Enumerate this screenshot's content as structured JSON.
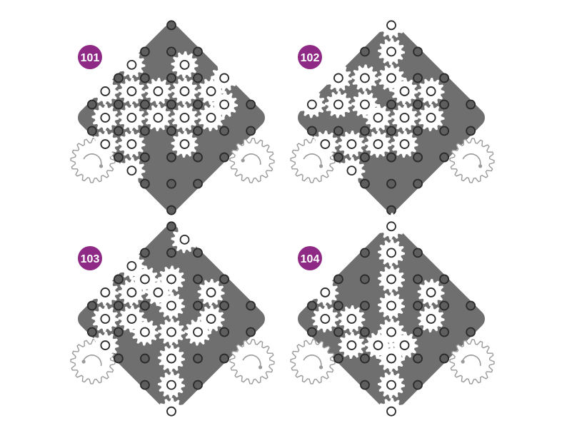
{
  "colors": {
    "board": "#6f6f6f",
    "peg_fill": "#5e5e5e",
    "peg_stroke": "#2a2a2a",
    "gear_fill": "#ffffff",
    "badge": "#8e2a86",
    "badge_text": "#ffffff",
    "drive_stroke": "#9a9a9a"
  },
  "puzzles": [
    {
      "number": "101",
      "left_drive_arrow": "clockwise",
      "right_drive_arrow": "counterclockwise",
      "gears": [
        [
          2,
          1
        ],
        [
          4,
          0
        ],
        [
          5,
          1
        ],
        [
          0,
          3
        ],
        [
          1,
          4
        ],
        [
          2,
          3
        ],
        [
          3,
          2
        ],
        [
          4,
          1
        ],
        [
          0,
          5
        ],
        [
          1,
          6
        ],
        [
          2,
          5
        ],
        [
          3,
          4
        ],
        [
          4,
          3
        ],
        [
          5,
          2
        ],
        [
          2,
          7
        ],
        [
          3,
          6
        ],
        [
          5,
          4
        ],
        [
          4,
          7
        ]
      ]
    },
    {
      "number": "102",
      "left_drive_arrow": "clockwise",
      "right_drive_arrow": "clockwise",
      "gears": [
        [
          0,
          0
        ],
        [
          1,
          1
        ],
        [
          2,
          2
        ],
        [
          1,
          3
        ],
        [
          0,
          4
        ],
        [
          3,
          2
        ],
        [
          4,
          1
        ],
        [
          4,
          3
        ],
        [
          5,
          2
        ],
        [
          0,
          6
        ],
        [
          1,
          5
        ],
        [
          2,
          4
        ],
        [
          3,
          4
        ],
        [
          4,
          5
        ],
        [
          5,
          4
        ],
        [
          3,
          6
        ],
        [
          2,
          7
        ],
        [
          4,
          7
        ]
      ]
    },
    {
      "number": "103",
      "left_drive_arrow": "counterclockwise",
      "right_drive_arrow": "clockwise",
      "gears": [
        [
          1,
          0
        ],
        [
          1,
          3
        ],
        [
          2,
          2
        ],
        [
          0,
          3
        ],
        [
          1,
          4
        ],
        [
          2,
          3
        ],
        [
          3,
          3
        ],
        [
          5,
          2
        ],
        [
          4,
          1
        ],
        [
          0,
          5
        ],
        [
          1,
          6
        ],
        [
          2,
          5
        ],
        [
          3,
          5
        ],
        [
          4,
          4
        ],
        [
          5,
          3
        ],
        [
          2,
          7
        ],
        [
          5,
          5
        ],
        [
          7,
          7
        ],
        [
          6,
          6
        ]
      ]
    },
    {
      "number": "104",
      "left_drive_arrow": "clockwise",
      "right_drive_arrow": "counterclockwise",
      "gears": [
        [
          0,
          0
        ],
        [
          1,
          1
        ],
        [
          2,
          2
        ],
        [
          3,
          3
        ],
        [
          4,
          4
        ],
        [
          4,
          1
        ],
        [
          5,
          2
        ],
        [
          5,
          4
        ],
        [
          4,
          5
        ],
        [
          0,
          5
        ],
        [
          1,
          6
        ],
        [
          2,
          5
        ],
        [
          3,
          6
        ],
        [
          5,
          5
        ],
        [
          6,
          6
        ],
        [
          7,
          7
        ]
      ]
    }
  ]
}
